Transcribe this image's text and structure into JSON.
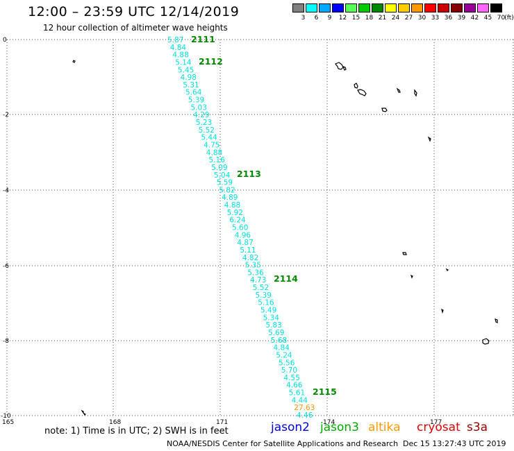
{
  "header": {
    "title": "12:00 – 23:59 UTC 12/14/2019",
    "subtitle": "12 hour collection of altimeter wave heights"
  },
  "legend": {
    "unit": "(ft)",
    "bins": [
      {
        "label": "3",
        "color": "#808080"
      },
      {
        "label": "6",
        "color": "#00ffff"
      },
      {
        "label": "9",
        "color": "#00aaff"
      },
      {
        "label": "12",
        "color": "#0000ff"
      },
      {
        "label": "15",
        "color": "#55ff55"
      },
      {
        "label": "18",
        "color": "#00cc00"
      },
      {
        "label": "21",
        "color": "#008800"
      },
      {
        "label": "24",
        "color": "#ffff00"
      },
      {
        "label": "27",
        "color": "#ffcc00"
      },
      {
        "label": "30",
        "color": "#ff9900"
      },
      {
        "label": "33",
        "color": "#ff0000"
      },
      {
        "label": "36",
        "color": "#cc0000"
      },
      {
        "label": "39",
        "color": "#880000"
      },
      {
        "label": "42",
        "color": "#990099"
      },
      {
        "label": "45",
        "color": "#ff66ff"
      },
      {
        "label": "70",
        "color": "#000000"
      }
    ]
  },
  "axes": {
    "x_ticks": [
      "165",
      "168",
      "171",
      "174",
      "177"
    ],
    "y_ticks": [
      "0",
      "-2",
      "-4",
      "-6",
      "-8",
      "-10"
    ]
  },
  "track": {
    "swh_labels": [
      "5.87",
      "4.84",
      "4.88",
      "5.14",
      "5.45",
      "4.98",
      "5.31",
      "5.64",
      "5.39",
      "5.03",
      "4.29",
      "5.23",
      "5.52",
      "5.44",
      "4.75",
      "4.88",
      "5.16",
      "5.09",
      "5.04",
      "5.59",
      "5.82",
      "4.89",
      "4.88",
      "5.92",
      "6.24",
      "5.60",
      "4.96",
      "4.87",
      "5.11",
      "4.82",
      "5.35",
      "5.36",
      "4.73",
      "5.52",
      "5.39",
      "5.16",
      "5.49",
      "5.34",
      "5.83",
      "5.69",
      "5.68",
      "4.84",
      "5.24",
      "5.56",
      "5.70",
      "4.55",
      "4.66",
      "5.61",
      "4.44",
      "27.63",
      "4.46"
    ],
    "swh_colors": [
      "#00e0e0",
      "#00e0e0",
      "#00e0e0",
      "#00e0e0",
      "#00e0e0",
      "#00e0e0",
      "#00e0e0",
      "#00e0e0",
      "#00e0e0",
      "#00e0e0",
      "#00e0e0",
      "#00e0e0",
      "#00e0e0",
      "#00e0e0",
      "#00e0e0",
      "#00e0e0",
      "#00e0e0",
      "#00e0e0",
      "#00e0e0",
      "#00e0e0",
      "#00e0e0",
      "#00e0e0",
      "#00e0e0",
      "#00e0e0",
      "#00e0e0",
      "#00e0e0",
      "#00e0e0",
      "#00e0e0",
      "#00e0e0",
      "#00e0e0",
      "#00e0e0",
      "#00e0e0",
      "#00e0e0",
      "#00e0e0",
      "#00e0e0",
      "#00e0e0",
      "#00e0e0",
      "#00e0e0",
      "#00e0e0",
      "#00e0e0",
      "#00e0e0",
      "#00e0e0",
      "#00e0e0",
      "#00e0e0",
      "#00e0e0",
      "#00e0e0",
      "#00e0e0",
      "#00e0e0",
      "#00e0e0",
      "#ff9900",
      "#00e0e0"
    ],
    "time_labels": [
      "2111",
      "2112",
      "2113",
      "2114",
      "2115"
    ],
    "time_color": "#008800"
  },
  "footer": {
    "note": "note: 1) Time is in UTC; 2) SWH is in feet",
    "satellites": [
      {
        "name": "jason2",
        "color": "#0000dd"
      },
      {
        "name": "jason3",
        "color": "#00aa00"
      },
      {
        "name": "altika",
        "color": "#ff9900"
      },
      {
        "name": "cryosat",
        "color": "#dd0000"
      },
      {
        "name": "s3a",
        "color": "#990000"
      }
    ],
    "credit": "NOAA/NESDIS Center for Satellite Applications and Research",
    "timestamp": "Dec 15 13:27:43 UTC 2019"
  }
}
